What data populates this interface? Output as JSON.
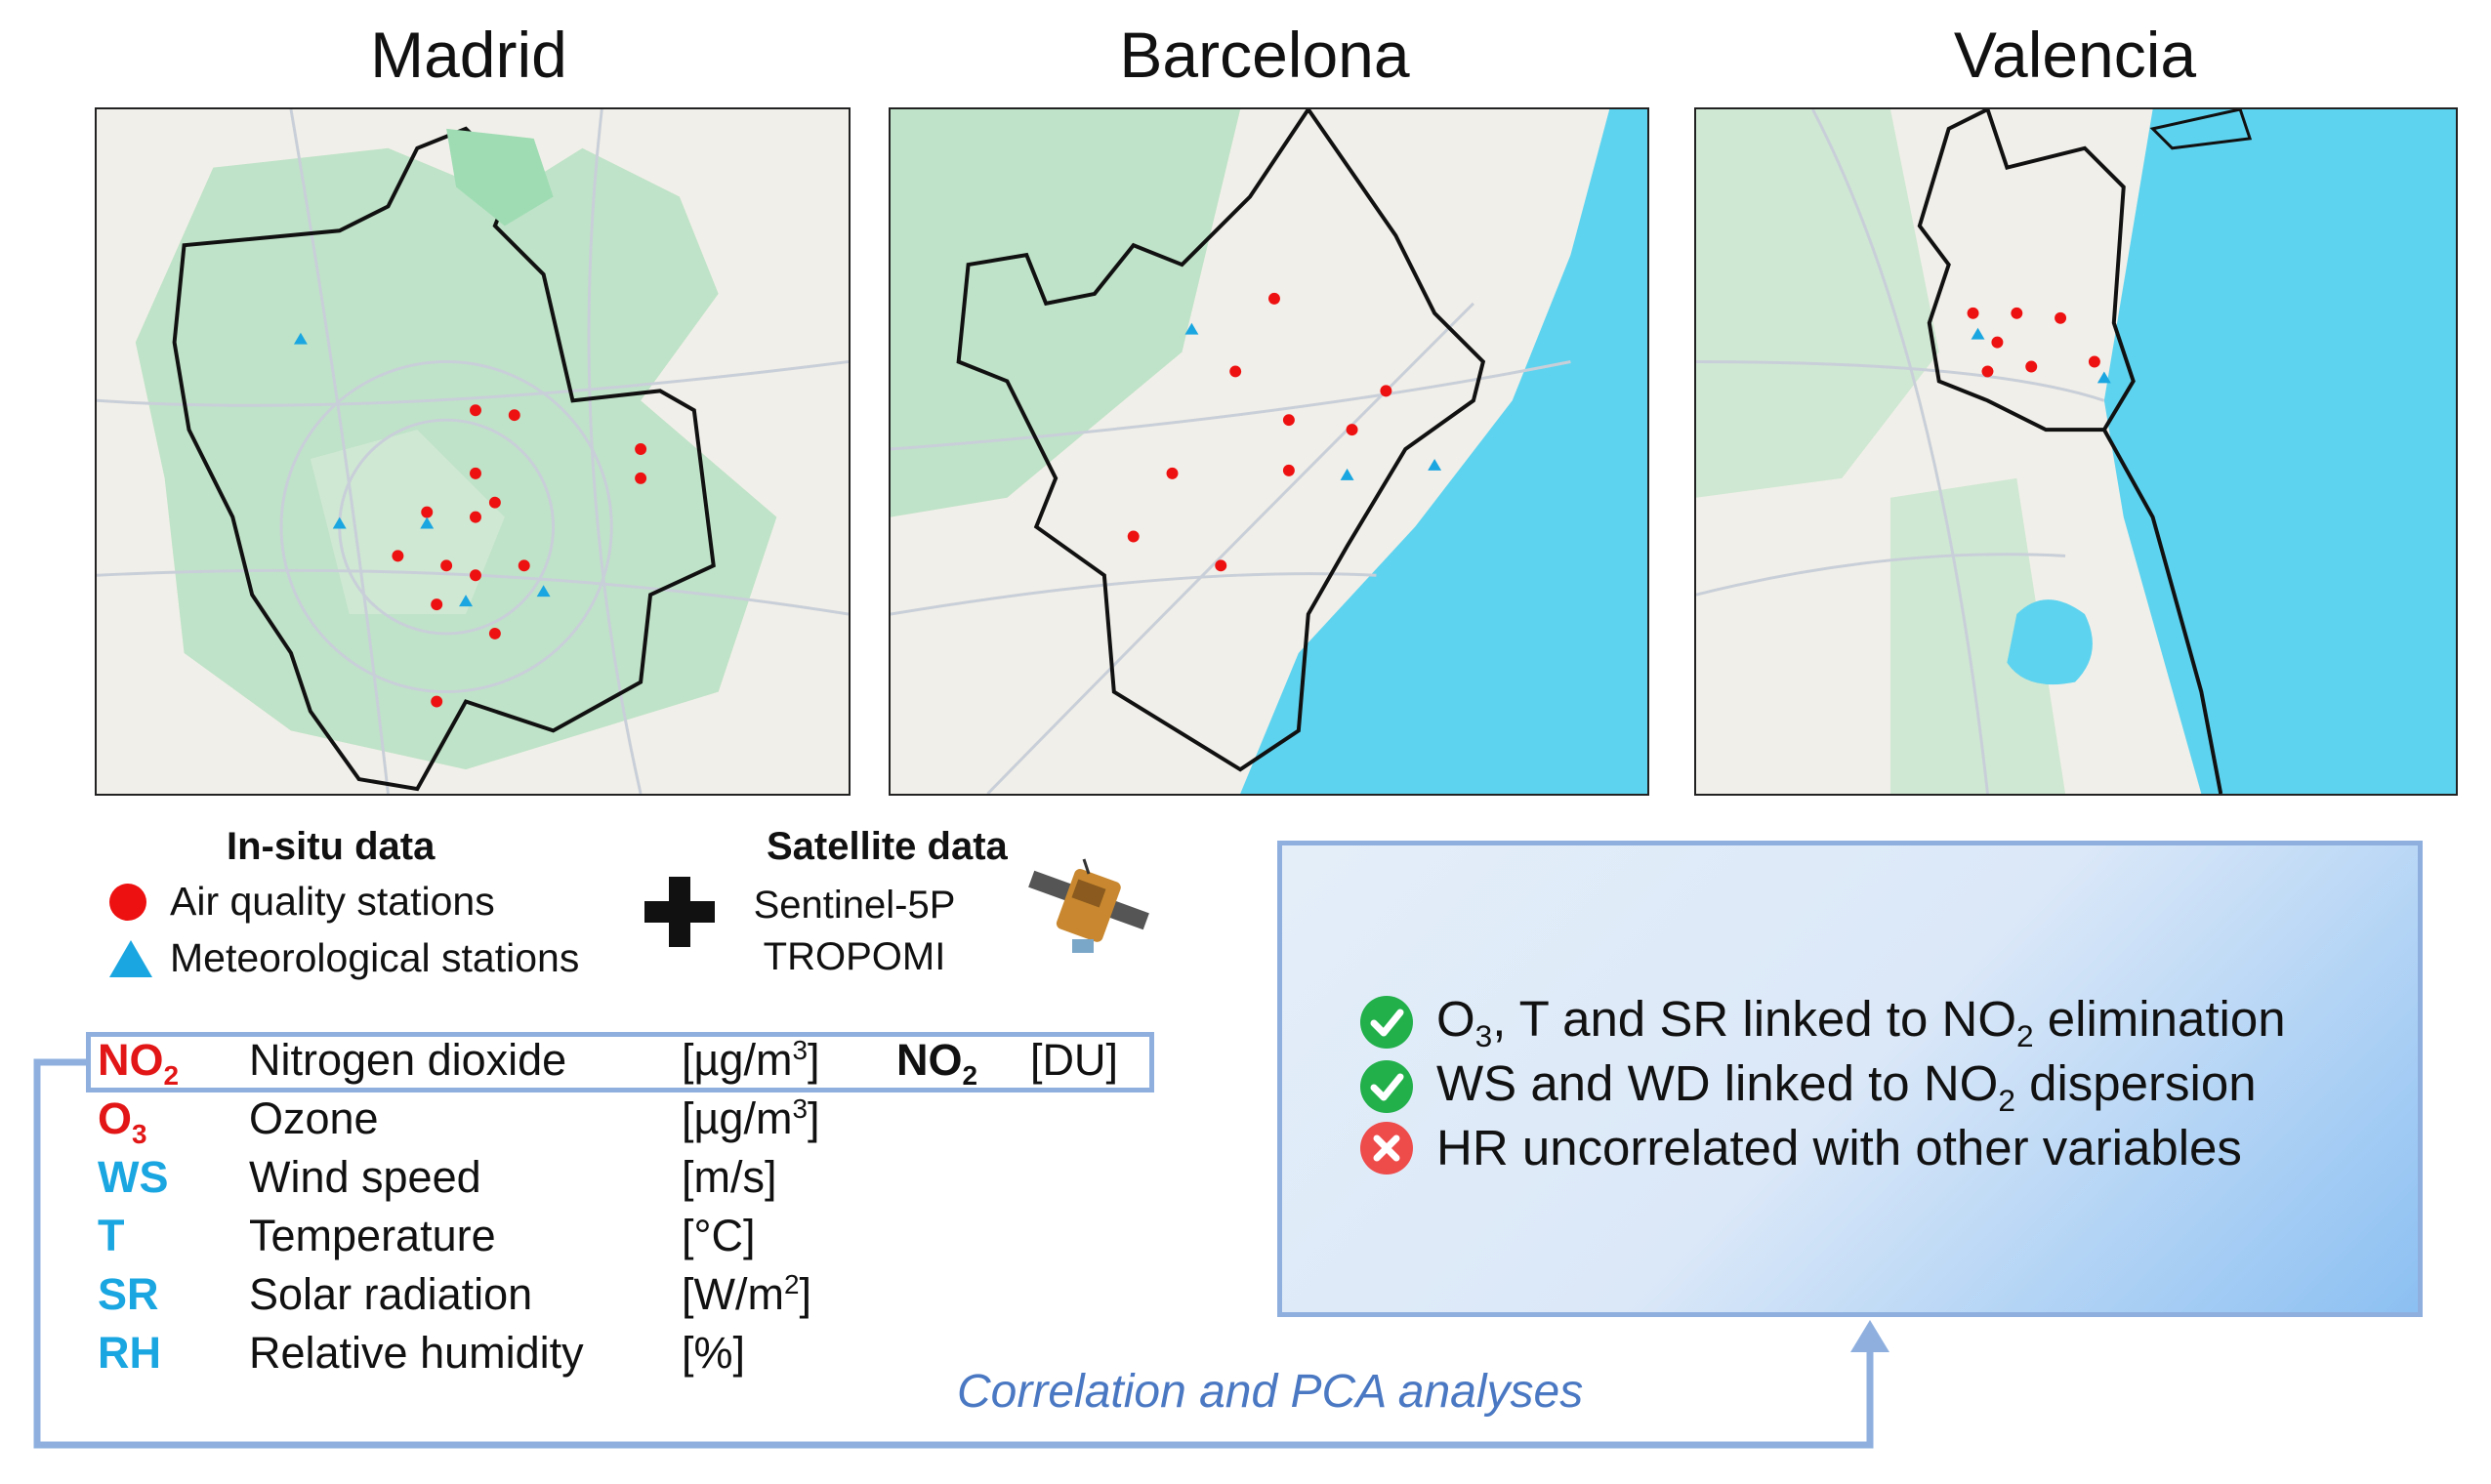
{
  "maps": [
    {
      "id": "madrid",
      "title": "Madrid"
    },
    {
      "id": "barcelona",
      "title": "Barcelona"
    },
    {
      "id": "valencia",
      "title": "Valencia"
    }
  ],
  "legend": {
    "insitu_title": "In-situ data",
    "air_quality_label": "Air quality stations",
    "meteo_label": "Meteorological stations",
    "satellite_title": "Satellite data",
    "satellite_line1": "Sentinel-5P",
    "satellite_line2": "TROPOMI"
  },
  "variables": [
    {
      "abbr": "NO",
      "abbr_sub": "2",
      "name": "Nitrogen dioxide",
      "unit": "[µg/m",
      "unit_sup": "3",
      "unit_end": "]",
      "color": "#e21616"
    },
    {
      "abbr": "O",
      "abbr_sub": "3",
      "name": "Ozone",
      "unit": "[µg/m",
      "unit_sup": "3",
      "unit_end": "]",
      "color": "#e21616"
    },
    {
      "abbr": "WS",
      "abbr_sub": "",
      "name": "Wind speed",
      "unit": "[m/s]",
      "unit_sup": "",
      "unit_end": "",
      "color": "#1aa6e0"
    },
    {
      "abbr": "T",
      "abbr_sub": "",
      "name": "Temperature",
      "unit": "[°C]",
      "unit_sup": "",
      "unit_end": "",
      "color": "#1aa6e0"
    },
    {
      "abbr": "SR",
      "abbr_sub": "",
      "name": "Solar radiation",
      "unit": "[W/m",
      "unit_sup": "2",
      "unit_end": "]",
      "color": "#1aa6e0"
    },
    {
      "abbr": "RH",
      "abbr_sub": "",
      "name": "Relative humidity",
      "unit": "[%]",
      "unit_sup": "",
      "unit_end": "",
      "color": "#1aa6e0"
    }
  ],
  "satellite_variable": {
    "abbr": "NO",
    "abbr_sub": "2",
    "unit": "[DU]"
  },
  "results": [
    {
      "status": "check",
      "pre": "O",
      "pre_sub": "3",
      "text": ", T and SR linked to NO",
      "sub": "2",
      "post": " elimination"
    },
    {
      "status": "check",
      "pre": "",
      "pre_sub": "",
      "text": "WS and WD linked to NO",
      "sub": "2",
      "post": " dispersion"
    },
    {
      "status": "cross",
      "pre": "",
      "pre_sub": "",
      "text": "HR uncorrelated with other variables",
      "sub": "",
      "post": ""
    }
  ],
  "flow_caption": "Correlation and PCA analyses",
  "colors": {
    "red": "#e21616",
    "cyan": "#1aa6e0",
    "box_border": "#8fb0df",
    "caption": "#4a78c2",
    "check": "#22b04b",
    "cross": "#ee4b4b"
  }
}
